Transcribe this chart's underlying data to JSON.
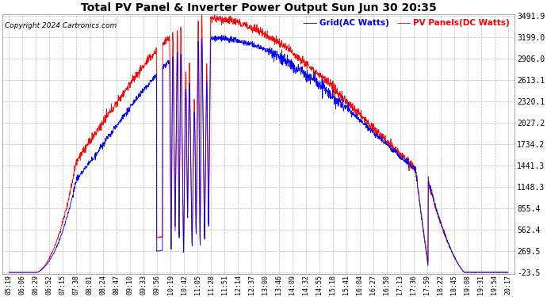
{
  "title": "Total PV Panel & Inverter Power Output Sun Jun 30 20:35",
  "copyright": "Copyright 2024 Cartronics.com",
  "legend_grid": "Grid(AC Watts)",
  "legend_pv": "PV Panels(DC Watts)",
  "grid_color": "blue",
  "pv_color": "red",
  "background_color": "#ffffff",
  "yticks": [
    3491.9,
    3199.0,
    2906.0,
    2613.1,
    2320.1,
    2027.2,
    1734.2,
    1441.3,
    1148.3,
    855.4,
    562.4,
    269.5,
    -23.5
  ],
  "ymin": -23.5,
  "ymax": 3491.9,
  "xtick_labels": [
    "05:19",
    "06:06",
    "06:29",
    "06:52",
    "07:15",
    "07:38",
    "08:01",
    "08:24",
    "08:47",
    "09:10",
    "09:33",
    "09:56",
    "10:19",
    "10:42",
    "11:05",
    "11:28",
    "11:51",
    "12:14",
    "12:37",
    "13:00",
    "13:46",
    "14:09",
    "14:32",
    "14:55",
    "15:18",
    "15:41",
    "16:04",
    "16:27",
    "16:50",
    "17:13",
    "17:36",
    "17:59",
    "18:22",
    "18:45",
    "19:08",
    "19:31",
    "19:54",
    "20:17"
  ]
}
